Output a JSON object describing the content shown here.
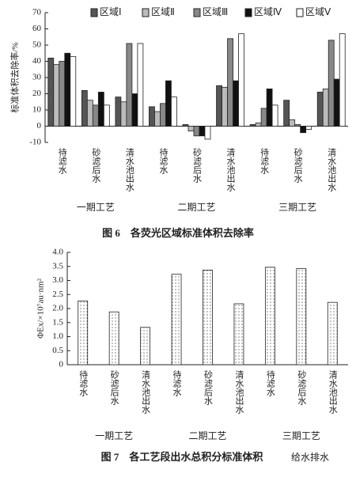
{
  "chart_data": [
    {
      "type": "bar",
      "title": "图 6　各荧光区域标准体积去除率",
      "y_label": "标准体积去除率/%",
      "categories": [
        "待滤水",
        "砂滤后水",
        "清水池出水",
        "待滤水",
        "砂滤后水",
        "清水池出水",
        "待滤水",
        "砂滤后水",
        "清水池出水"
      ],
      "groups": [
        "一期工艺",
        "二期工艺",
        "三期工艺"
      ],
      "series": [
        {
          "name": "区域Ⅰ",
          "color": "#555555",
          "values": [
            42,
            22,
            18,
            12,
            1,
            25,
            1,
            16,
            21
          ]
        },
        {
          "name": "区域Ⅱ",
          "color": "#bbbbbb",
          "values": [
            38,
            16,
            15,
            9,
            -3,
            24,
            2,
            4,
            23
          ]
        },
        {
          "name": "区域Ⅲ",
          "color": "#888888",
          "values": [
            40,
            13,
            51,
            14,
            -6,
            54,
            11,
            1,
            53
          ]
        },
        {
          "name": "区域Ⅳ",
          "color": "#111111",
          "values": [
            45,
            21,
            20,
            28,
            -6,
            28,
            23,
            -4,
            29
          ]
        },
        {
          "name": "区域Ⅴ",
          "color": "#ffffff",
          "values": [
            43,
            13,
            51,
            18,
            -8,
            57,
            13,
            -2,
            57
          ]
        }
      ],
      "ylim": [
        -10,
        70
      ],
      "yticks": [
        -10,
        0,
        10,
        20,
        30,
        40,
        50,
        60,
        70
      ],
      "legend": "top"
    },
    {
      "type": "bar",
      "title": "图 7　各工艺段出水总积分标准体积",
      "y_label": "ΦEx/×10⁷au·nm²",
      "categories": [
        "待滤水",
        "砂滤后水",
        "清水池出水",
        "待滤水",
        "砂滤后水",
        "清水池出水",
        "待滤水",
        "砂滤后水",
        "清水池出水"
      ],
      "groups": [
        "一期工艺",
        "二期工艺",
        "三期工艺"
      ],
      "series": [
        {
          "color": "#ffffff",
          "values": [
            2.27,
            1.88,
            1.33,
            3.22,
            3.37,
            2.17,
            3.47,
            3.42,
            2.22
          ]
        }
      ],
      "ylim": [
        0,
        4
      ],
      "yticks": [
        0,
        0.5,
        {
          "value": 1,
          "label": "1.0"
        },
        1.5,
        {
          "value": 2,
          "label": "2.0"
        },
        2.5,
        {
          "value": 3,
          "label": "3.0"
        },
        3.5,
        {
          "value": 4,
          "label": "4.0"
        }
      ]
    }
  ],
  "watermark": "给水排水"
}
